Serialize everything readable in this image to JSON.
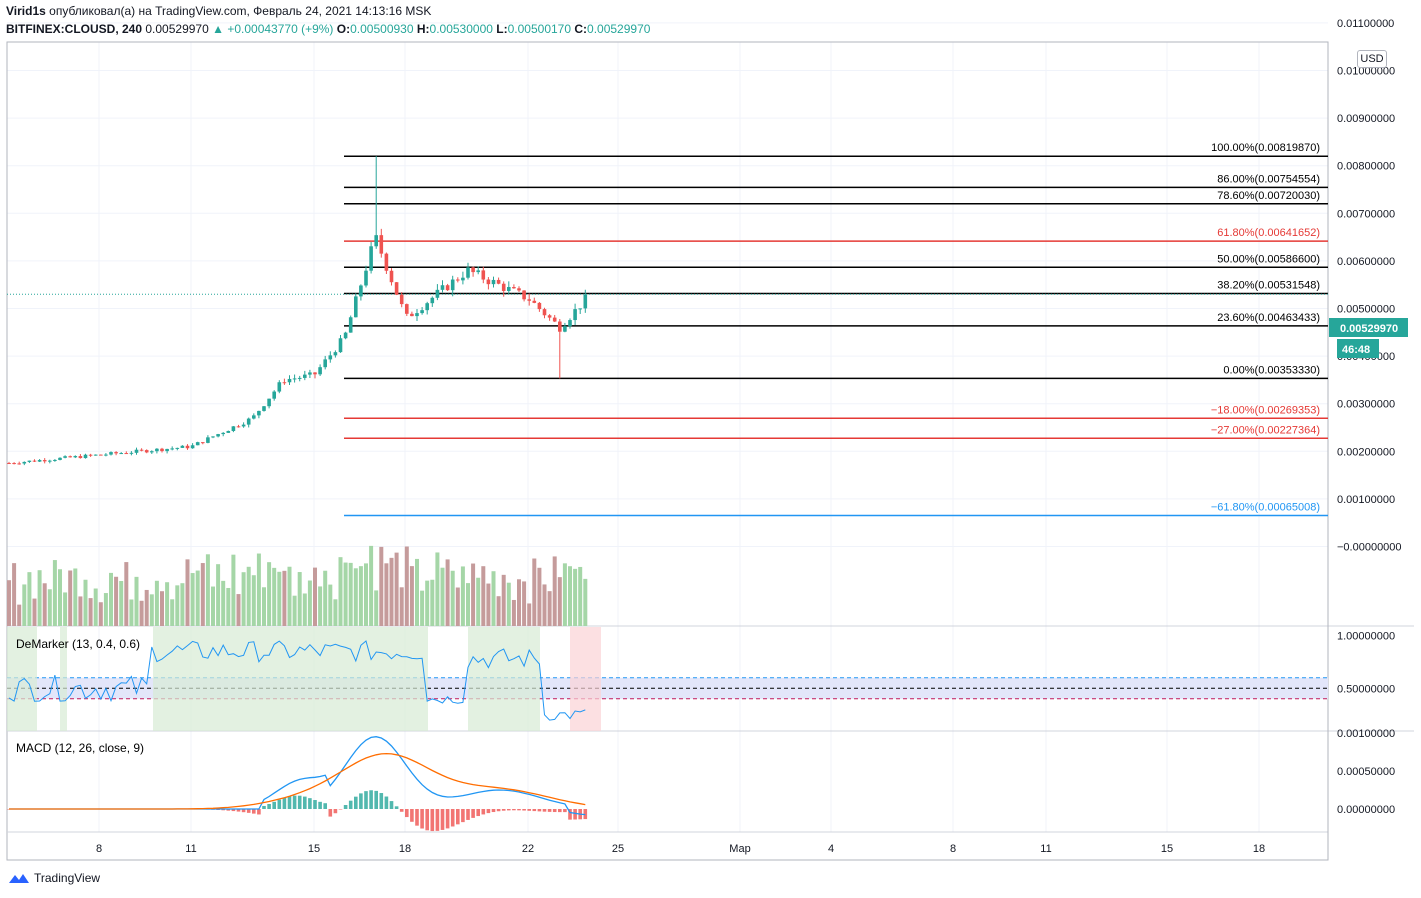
{
  "header": {
    "author": "Virid1s",
    "published_text": "опубликовал(а) на TradingView.com, Февраль 24, 2021 14:13:16 MSK",
    "symbol": "BITFINEX:CLOUSD, 240",
    "last_price": "0.00529970",
    "change": "▲ +0.00043770 (+9%)",
    "o_label": "O:",
    "o_value": "0.00500930",
    "h_label": "H:",
    "h_value": "0.00530000",
    "l_label": "L:",
    "l_value": "0.00500170",
    "c_label": "C:",
    "c_value": "0.00529970"
  },
  "currency_button": "USD",
  "price_badge": "0.00529970",
  "countdown_badge": "46:48",
  "footer_brand": "TradingView",
  "colors": {
    "up": "#26a69a",
    "down": "#ef5350",
    "fib_black": "#000000",
    "fib_red": "#e53935",
    "fib_blue": "#2196f3",
    "demarker": "#2196f3",
    "macd": "#2196f3",
    "signal": "#ff6d00"
  },
  "chart_data": {
    "type": "candlestick",
    "price_axis_ticks": [
      "0.01100000",
      "0.01000000",
      "0.00900000",
      "0.00800000",
      "0.00700000",
      "0.00600000",
      "0.00500000",
      "0.00400000",
      "0.00300000",
      "0.00200000",
      "0.00100000",
      "−0.00000000"
    ],
    "time_axis_ticks": [
      "8",
      "11",
      "15",
      "18",
      "22",
      "25",
      "Мар",
      "4",
      "8",
      "11",
      "15",
      "18"
    ],
    "fibonacci": [
      {
        "label": "100.00%(0.00819870)",
        "value": 0.0081987,
        "color": "black"
      },
      {
        "label": "86.00%(0.00754554)",
        "value": 0.00754554,
        "color": "black"
      },
      {
        "label": "78.60%(0.00720030)",
        "value": 0.0072003,
        "color": "black"
      },
      {
        "label": "61.80%(0.00641652)",
        "value": 0.00641652,
        "color": "red"
      },
      {
        "label": "50.00%(0.00586600)",
        "value": 0.005866,
        "color": "black"
      },
      {
        "label": "38.20%(0.00531548)",
        "value": 0.00531548,
        "color": "black"
      },
      {
        "label": "23.60%(0.00463433)",
        "value": 0.00463433,
        "color": "black"
      },
      {
        "label": "0.00%(0.00353330)",
        "value": 0.0035333,
        "color": "black"
      },
      {
        "label": "−18.00%(0.00269353)",
        "value": 0.00269353,
        "color": "red"
      },
      {
        "label": "−27.00%(0.00227364)",
        "value": 0.00227364,
        "color": "red"
      },
      {
        "label": "−61.80%(0.00065008)",
        "value": 0.00065008,
        "color": "blue"
      }
    ],
    "demarker": {
      "title": "DeMarker (13, 0.4, 0.6)",
      "axis_ticks": [
        "1.00000000",
        "0.50000000"
      ],
      "levels": [
        0.4,
        0.6
      ]
    },
    "macd": {
      "title": "MACD (12, 26, close, 9)",
      "axis_ticks": [
        "0.00100000",
        "0.00050000",
        "0.00000000"
      ]
    },
    "key_points": [
      {
        "date": "2021-02-05",
        "close": 0.00175
      },
      {
        "date": "2021-02-11",
        "close": 0.0021
      },
      {
        "date": "2021-02-13",
        "close": 0.0027
      },
      {
        "date": "2021-02-14",
        "close": 0.0035
      },
      {
        "date": "2021-02-15",
        "close": 0.0036
      },
      {
        "date": "2021-02-16",
        "close": 0.0044
      },
      {
        "date": "2021-02-17",
        "high": 0.0082,
        "close": 0.0065
      },
      {
        "date": "2021-02-18",
        "close": 0.0048
      },
      {
        "date": "2021-02-20",
        "close": 0.0058
      },
      {
        "date": "2021-02-22",
        "close": 0.0052
      },
      {
        "date": "2021-02-23",
        "low": 0.00353,
        "close": 0.0046
      },
      {
        "date": "2021-02-24",
        "close": 0.0053
      }
    ]
  }
}
